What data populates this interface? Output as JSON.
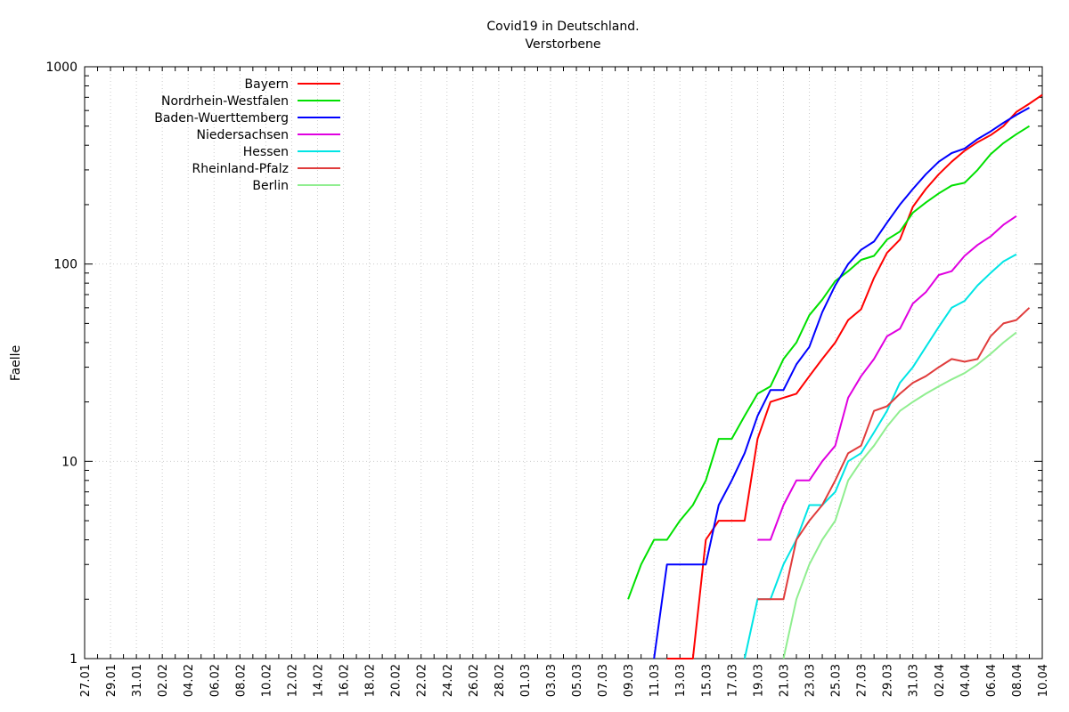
{
  "chart_data": {
    "type": "line",
    "title": "Covid19 in Deutschland.",
    "subtitle": "Verstorbene",
    "ylabel": "Faelle",
    "xlabel": "",
    "yscale": "log",
    "ylim": [
      1,
      1000
    ],
    "yticks": [
      "1",
      "10",
      "100",
      "1000"
    ],
    "grid": true,
    "legend_position": "top-left",
    "dates": [
      "27.01",
      "28.01",
      "29.01",
      "30.01",
      "31.01",
      "01.02",
      "02.02",
      "03.02",
      "04.02",
      "05.02",
      "06.02",
      "07.02",
      "08.02",
      "09.02",
      "10.02",
      "11.02",
      "12.02",
      "13.02",
      "14.02",
      "15.02",
      "16.02",
      "17.02",
      "18.02",
      "19.02",
      "20.02",
      "21.02",
      "22.02",
      "23.02",
      "24.02",
      "25.02",
      "26.02",
      "27.02",
      "28.02",
      "29.02",
      "01.03",
      "02.03",
      "03.03",
      "04.03",
      "05.03",
      "06.03",
      "07.03",
      "08.03",
      "09.03",
      "10.03",
      "11.03",
      "12.03",
      "13.03",
      "14.03",
      "15.03",
      "16.03",
      "17.03",
      "18.03",
      "19.03",
      "20.03",
      "21.03",
      "22.03",
      "23.03",
      "24.03",
      "25.03",
      "26.03",
      "27.03",
      "28.03",
      "29.03",
      "30.03",
      "31.03",
      "01.04",
      "02.04",
      "03.04",
      "04.04",
      "05.04",
      "06.04",
      "07.04",
      "08.04",
      "09.04",
      "10.04"
    ],
    "x_tick_labels": [
      "27.01",
      "29.01",
      "31.01",
      "02.02",
      "04.02",
      "06.02",
      "08.02",
      "10.02",
      "12.02",
      "14.02",
      "16.02",
      "18.02",
      "20.02",
      "22.02",
      "24.02",
      "26.02",
      "28.02",
      "01.03",
      "03.03",
      "05.03",
      "07.03",
      "09.03",
      "11.03",
      "13.03",
      "15.03",
      "17.03",
      "19.03",
      "21.03",
      "23.03",
      "25.03",
      "27.03",
      "29.03",
      "31.03",
      "02.04",
      "04.04",
      "06.04",
      "08.04",
      "10.04"
    ],
    "series": [
      {
        "name": "Bayern",
        "color": "#ff0000",
        "points": [
          [
            "12.03",
            1
          ],
          [
            "13.03",
            1
          ],
          [
            "14.03",
            1
          ],
          [
            "15.03",
            4
          ],
          [
            "16.03",
            5
          ],
          [
            "17.03",
            5
          ],
          [
            "18.03",
            5
          ],
          [
            "19.03",
            13
          ],
          [
            "20.03",
            20
          ],
          [
            "21.03",
            21
          ],
          [
            "22.03",
            22
          ],
          [
            "23.03",
            27
          ],
          [
            "24.03",
            33
          ],
          [
            "25.03",
            40
          ],
          [
            "26.03",
            52
          ],
          [
            "27.03",
            59
          ],
          [
            "28.03",
            85
          ],
          [
            "29.03",
            114
          ],
          [
            "30.03",
            133
          ],
          [
            "31.03",
            195
          ],
          [
            "01.04",
            240
          ],
          [
            "02.04",
            285
          ],
          [
            "03.04",
            330
          ],
          [
            "04.04",
            375
          ],
          [
            "05.04",
            415
          ],
          [
            "06.04",
            450
          ],
          [
            "07.04",
            500
          ],
          [
            "08.04",
            590
          ],
          [
            "09.04",
            650
          ],
          [
            "10.04",
            720
          ]
        ]
      },
      {
        "name": "Nordrhein-Westfalen",
        "color": "#00e000",
        "points": [
          [
            "09.03",
            2
          ],
          [
            "10.03",
            3
          ],
          [
            "11.03",
            4
          ],
          [
            "12.03",
            4
          ],
          [
            "13.03",
            5
          ],
          [
            "14.03",
            6
          ],
          [
            "15.03",
            8
          ],
          [
            "16.03",
            13
          ],
          [
            "17.03",
            13
          ],
          [
            "18.03",
            17
          ],
          [
            "19.03",
            22
          ],
          [
            "20.03",
            24
          ],
          [
            "21.03",
            33
          ],
          [
            "22.03",
            40
          ],
          [
            "23.03",
            55
          ],
          [
            "24.03",
            66
          ],
          [
            "25.03",
            82
          ],
          [
            "26.03",
            92
          ],
          [
            "27.03",
            105
          ],
          [
            "28.03",
            110
          ],
          [
            "29.03",
            133
          ],
          [
            "30.03",
            146
          ],
          [
            "31.03",
            182
          ],
          [
            "01.04",
            205
          ],
          [
            "02.04",
            228
          ],
          [
            "03.04",
            250
          ],
          [
            "04.04",
            258
          ],
          [
            "05.04",
            300
          ],
          [
            "06.04",
            360
          ],
          [
            "07.04",
            410
          ],
          [
            "08.04",
            455
          ],
          [
            "09.04",
            500
          ]
        ]
      },
      {
        "name": "Baden-Wuerttemberg",
        "color": "#0000ff",
        "points": [
          [
            "11.03",
            1
          ],
          [
            "12.03",
            3
          ],
          [
            "13.03",
            3
          ],
          [
            "14.03",
            3
          ],
          [
            "15.03",
            3
          ],
          [
            "16.03",
            6
          ],
          [
            "17.03",
            8
          ],
          [
            "18.03",
            11
          ],
          [
            "19.03",
            17
          ],
          [
            "20.03",
            23
          ],
          [
            "21.03",
            23
          ],
          [
            "22.03",
            31
          ],
          [
            "23.03",
            38
          ],
          [
            "24.03",
            57
          ],
          [
            "25.03",
            78
          ],
          [
            "26.03",
            100
          ],
          [
            "27.03",
            118
          ],
          [
            "28.03",
            130
          ],
          [
            "29.03",
            162
          ],
          [
            "30.03",
            200
          ],
          [
            "31.03",
            240
          ],
          [
            "01.04",
            285
          ],
          [
            "02.04",
            330
          ],
          [
            "03.04",
            365
          ],
          [
            "04.04",
            385
          ],
          [
            "05.04",
            430
          ],
          [
            "06.04",
            470
          ],
          [
            "07.04",
            520
          ],
          [
            "08.04",
            570
          ],
          [
            "09.04",
            620
          ]
        ]
      },
      {
        "name": "Niedersachsen",
        "color": "#e000e0",
        "points": [
          [
            "19.03",
            4
          ],
          [
            "20.03",
            4
          ],
          [
            "21.03",
            6
          ],
          [
            "22.03",
            8
          ],
          [
            "23.03",
            8
          ],
          [
            "24.03",
            10
          ],
          [
            "25.03",
            12
          ],
          [
            "26.03",
            21
          ],
          [
            "27.03",
            27
          ],
          [
            "28.03",
            33
          ],
          [
            "29.03",
            43
          ],
          [
            "30.03",
            47
          ],
          [
            "31.03",
            63
          ],
          [
            "01.04",
            72
          ],
          [
            "02.04",
            88
          ],
          [
            "03.04",
            92
          ],
          [
            "04.04",
            110
          ],
          [
            "05.04",
            125
          ],
          [
            "06.04",
            138
          ],
          [
            "07.04",
            158
          ],
          [
            "08.04",
            175
          ]
        ]
      },
      {
        "name": "Hessen",
        "color": "#00e5e5",
        "points": [
          [
            "18.03",
            1
          ],
          [
            "19.03",
            2
          ],
          [
            "20.03",
            2
          ],
          [
            "21.03",
            3
          ],
          [
            "22.03",
            4
          ],
          [
            "23.03",
            6
          ],
          [
            "24.03",
            6
          ],
          [
            "25.03",
            7
          ],
          [
            "26.03",
            10
          ],
          [
            "27.03",
            11
          ],
          [
            "28.03",
            14
          ],
          [
            "29.03",
            18
          ],
          [
            "30.03",
            25
          ],
          [
            "31.03",
            30
          ],
          [
            "01.04",
            38
          ],
          [
            "02.04",
            48
          ],
          [
            "03.04",
            60
          ],
          [
            "04.04",
            65
          ],
          [
            "05.04",
            78
          ],
          [
            "06.04",
            90
          ],
          [
            "07.04",
            103
          ],
          [
            "08.04",
            112
          ]
        ]
      },
      {
        "name": "Rheinland-Pfalz",
        "color": "#e03c3c",
        "points": [
          [
            "19.03",
            2
          ],
          [
            "20.03",
            2
          ],
          [
            "21.03",
            2
          ],
          [
            "22.03",
            4
          ],
          [
            "23.03",
            5
          ],
          [
            "24.03",
            6
          ],
          [
            "25.03",
            8
          ],
          [
            "26.03",
            11
          ],
          [
            "27.03",
            12
          ],
          [
            "28.03",
            18
          ],
          [
            "29.03",
            19
          ],
          [
            "30.03",
            22
          ],
          [
            "31.03",
            25
          ],
          [
            "01.04",
            27
          ],
          [
            "02.04",
            30
          ],
          [
            "03.04",
            33
          ],
          [
            "04.04",
            32
          ],
          [
            "05.04",
            33
          ],
          [
            "06.04",
            43
          ],
          [
            "07.04",
            50
          ],
          [
            "08.04",
            52
          ],
          [
            "09.04",
            60
          ]
        ]
      },
      {
        "name": "Berlin",
        "color": "#90ee90",
        "points": [
          [
            "21.03",
            1
          ],
          [
            "22.03",
            2
          ],
          [
            "23.03",
            3
          ],
          [
            "24.03",
            4
          ],
          [
            "25.03",
            5
          ],
          [
            "26.03",
            8
          ],
          [
            "27.03",
            10
          ],
          [
            "28.03",
            12
          ],
          [
            "29.03",
            15
          ],
          [
            "30.03",
            18
          ],
          [
            "31.03",
            20
          ],
          [
            "01.04",
            22
          ],
          [
            "02.04",
            24
          ],
          [
            "03.04",
            26
          ],
          [
            "04.04",
            28
          ],
          [
            "05.04",
            31
          ],
          [
            "06.04",
            35
          ],
          [
            "07.04",
            40
          ],
          [
            "08.04",
            45
          ]
        ]
      }
    ]
  }
}
